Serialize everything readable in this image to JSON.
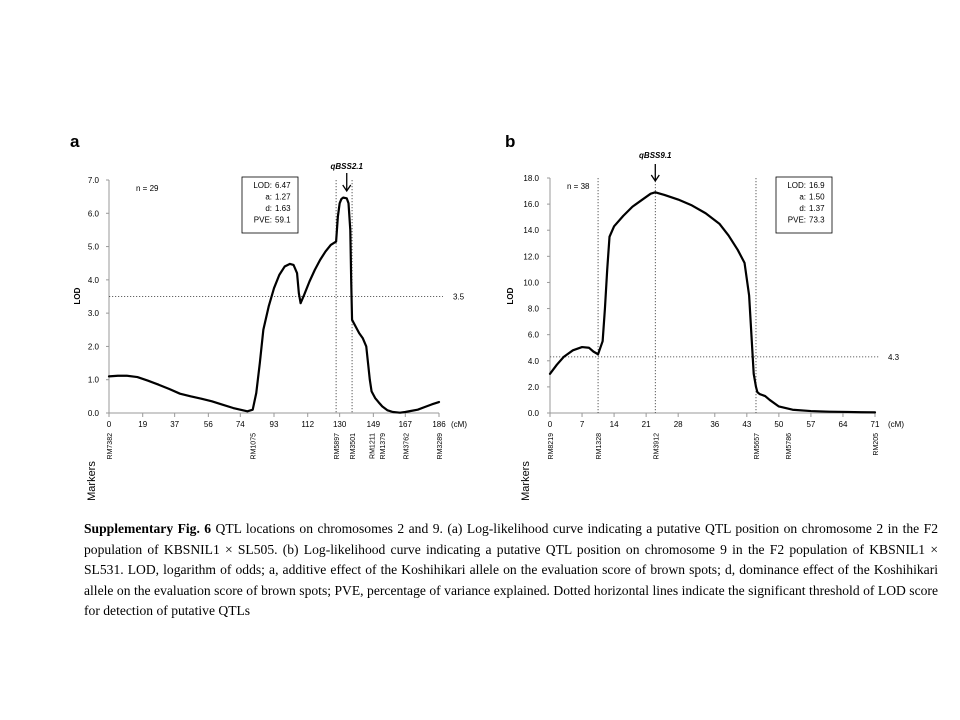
{
  "caption": {
    "label": "Supplementary Fig. 6",
    "text": " QTL locations on chromosomes 2 and 9. (a) Log-likelihood curve indicating a putative QTL position on chromosome 2 in the F2 population of KBSNIL1 × SL505. (b) Log-likelihood curve indicating a putative QTL position on chromosome 9 in the F2 population of KBSNIL1 × SL531. LOD, logarithm of odds; a, additive effect of the Koshihikari allele on the evaluation score of brown spots; d, dominance effect of the Koshihikari allele on the evaluation score of brown spots; PVE, percentage of variance explained. Dotted horizontal lines indicate the significant threshold of LOD score for detection of putative QTLs"
  },
  "chart_data": [
    {
      "type": "line",
      "panel_label": "a",
      "ylabel": "LOD",
      "xlabel_unit": "(cM)",
      "markers_label": "Markers",
      "ylim": [
        0,
        7
      ],
      "xlim": [
        0,
        186
      ],
      "yticks": [
        0.0,
        1.0,
        2.0,
        3.0,
        4.0,
        5.0,
        6.0,
        7.0
      ],
      "ytick_labels": [
        "0.0",
        "1.0",
        "2.0",
        "3.0",
        "4.0",
        "5.0",
        "6.0",
        "7.0"
      ],
      "xticks": [
        0,
        19,
        37,
        56,
        74,
        93,
        112,
        130,
        149,
        167,
        186
      ],
      "xtick_labels": [
        "0",
        "19",
        "37",
        "56",
        "74",
        "93",
        "112",
        "130",
        "149",
        "167",
        "186"
      ],
      "n_label": "n = 29",
      "threshold": 3.5,
      "threshold_label": "3.5",
      "qtl_name": "qBSS2.1",
      "qtl_position": 134,
      "stats": [
        {
          "key": "LOD:",
          "value": "6.47"
        },
        {
          "key": "a:",
          "value": "1.27"
        },
        {
          "key": "d:",
          "value": "1.63"
        },
        {
          "key": "PVE:",
          "value": "59.1"
        }
      ],
      "interval_lines": [
        128,
        137
      ],
      "markers": [
        {
          "name": "RM7382",
          "pos": 0
        },
        {
          "name": "RM1075",
          "pos": 81
        },
        {
          "name": "RM5897",
          "pos": 128
        },
        {
          "name": "RM3501",
          "pos": 137
        },
        {
          "name": "RM1211",
          "pos": 148
        },
        {
          "name": "RM1379",
          "pos": 154
        },
        {
          "name": "RM3762",
          "pos": 167
        },
        {
          "name": "RM3289",
          "pos": 186
        }
      ],
      "x": [
        0,
        5,
        10,
        16,
        22,
        28,
        34,
        40,
        46,
        52,
        58,
        64,
        70,
        74,
        78,
        81,
        83,
        85,
        87,
        90,
        93,
        96,
        99,
        102,
        104,
        106,
        107,
        108,
        110,
        113,
        116,
        119,
        122,
        125,
        128,
        129,
        130,
        131,
        132,
        134,
        135,
        136,
        136.5,
        137,
        139,
        141,
        143,
        145,
        146,
        147,
        148,
        150,
        152,
        154,
        157,
        160,
        164,
        167,
        170,
        174,
        178,
        182,
        186
      ],
      "y": [
        1.1,
        1.12,
        1.12,
        1.08,
        0.97,
        0.85,
        0.72,
        0.58,
        0.5,
        0.43,
        0.35,
        0.25,
        0.15,
        0.1,
        0.05,
        0.1,
        0.6,
        1.5,
        2.5,
        3.2,
        3.75,
        4.15,
        4.4,
        4.48,
        4.45,
        4.2,
        3.6,
        3.3,
        3.55,
        3.95,
        4.3,
        4.6,
        4.85,
        5.05,
        5.15,
        5.9,
        6.3,
        6.43,
        6.47,
        6.45,
        6.3,
        5.5,
        4.0,
        2.8,
        2.6,
        2.4,
        2.25,
        2.0,
        1.5,
        1.0,
        0.65,
        0.45,
        0.32,
        0.2,
        0.08,
        0.03,
        0.01,
        0.03,
        0.06,
        0.1,
        0.18,
        0.26,
        0.33
      ]
    },
    {
      "type": "line",
      "panel_label": "b",
      "ylabel": "LOD",
      "xlabel_unit": "(cM)",
      "markers_label": "Markers",
      "ylim": [
        0,
        18
      ],
      "xlim": [
        0,
        71
      ],
      "yticks": [
        0.0,
        2.0,
        4.0,
        6.0,
        8.0,
        10.0,
        12.0,
        14.0,
        16.0,
        18.0
      ],
      "ytick_labels": [
        "0.0",
        "2.0",
        "4.0",
        "6.0",
        "8.0",
        "10.0",
        "12.0",
        "14.0",
        "16.0",
        "18.0"
      ],
      "xticks": [
        0,
        7,
        14,
        21,
        28,
        36,
        43,
        50,
        57,
        64,
        71
      ],
      "xtick_labels": [
        "0",
        "7",
        "14",
        "21",
        "28",
        "36",
        "43",
        "50",
        "57",
        "64",
        "71"
      ],
      "n_label": "n = 38",
      "threshold": 4.3,
      "threshold_label": "4.3",
      "qtl_name": "qBSS9.1",
      "qtl_position": 23,
      "stats": [
        {
          "key": "LOD:",
          "value": "16.9"
        },
        {
          "key": "a:",
          "value": "1.50"
        },
        {
          "key": "d:",
          "value": "1.37"
        },
        {
          "key": "PVE:",
          "value": "73.3"
        }
      ],
      "interval_lines": [
        10.5,
        23,
        45
      ],
      "markers": [
        {
          "name": "RM8219",
          "pos": 0
        },
        {
          "name": "RM1328",
          "pos": 10.5
        },
        {
          "name": "RM3912",
          "pos": 23
        },
        {
          "name": "RM5657",
          "pos": 45
        },
        {
          "name": "RM5786",
          "pos": 52
        },
        {
          "name": "RM205",
          "pos": 71
        }
      ],
      "x": [
        0,
        1.5,
        3,
        5,
        7,
        8.5,
        9.5,
        10.5,
        11.5,
        12,
        12.5,
        13,
        14,
        16,
        18,
        20,
        22,
        23,
        25,
        28,
        31,
        34,
        37,
        39,
        41,
        42.5,
        43.5,
        44,
        44.5,
        45,
        45.3,
        45.8,
        47,
        48,
        50,
        53,
        57,
        61,
        65,
        68,
        71
      ],
      "y": [
        3.0,
        3.7,
        4.3,
        4.8,
        5.05,
        5.0,
        4.7,
        4.5,
        5.5,
        8.0,
        11.0,
        13.5,
        14.3,
        15.1,
        15.8,
        16.3,
        16.8,
        16.9,
        16.7,
        16.35,
        15.9,
        15.3,
        14.5,
        13.6,
        12.5,
        11.5,
        9.0,
        6.0,
        3.0,
        2.0,
        1.6,
        1.45,
        1.3,
        1.0,
        0.5,
        0.25,
        0.15,
        0.1,
        0.08,
        0.06,
        0.05
      ]
    }
  ]
}
